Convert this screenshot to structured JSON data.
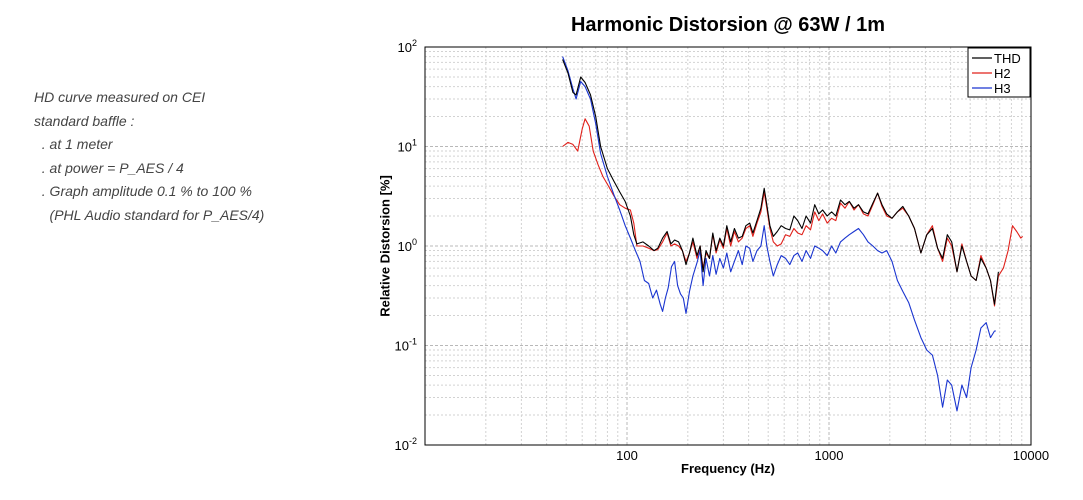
{
  "notes": {
    "lines": [
      "HD curve measured on CEI",
      "standard baffle :",
      "  . at 1 meter",
      "  . at power = P_AES / 4",
      "  . Graph amplitude 0.1 % to 100 %",
      "    (PHL Audio standard for P_AES/4)"
    ]
  },
  "chart_data": {
    "type": "line",
    "title": "Harmonic Distorsion @ 63W / 1m",
    "xlabel": "Frequency (Hz)",
    "ylabel": "Relative Distorsion [%]",
    "xscale": "log",
    "yscale": "log",
    "xlim": [
      10,
      10000
    ],
    "ylim": [
      0.01,
      100
    ],
    "x_tick_labels": [
      {
        "value": 100,
        "label": "100"
      },
      {
        "value": 1000,
        "label": "1000"
      },
      {
        "value": 10000,
        "label": "10000"
      }
    ],
    "y_tick_labels": [
      {
        "value": 100,
        "base": "10",
        "exp": "2"
      },
      {
        "value": 10,
        "base": "10",
        "exp": "1"
      },
      {
        "value": 1,
        "base": "10",
        "exp": "0"
      },
      {
        "value": 0.1,
        "base": "10",
        "exp": "-1"
      },
      {
        "value": 0.01,
        "base": "10",
        "exp": "-2"
      }
    ],
    "grid": true,
    "legend_position": "top-right",
    "series": [
      {
        "name": "THD",
        "color": "#000000",
        "points": [
          [
            48,
            75
          ],
          [
            51,
            55
          ],
          [
            54,
            35
          ],
          [
            56,
            33
          ],
          [
            59,
            50
          ],
          [
            62,
            44
          ],
          [
            66,
            33
          ],
          [
            70,
            20
          ],
          [
            74,
            10
          ],
          [
            80,
            6.0
          ],
          [
            86,
            4.5
          ],
          [
            92,
            3.5
          ],
          [
            98,
            2.8
          ],
          [
            104,
            2.0
          ],
          [
            108,
            1.3
          ],
          [
            112,
            1.05
          ],
          [
            120,
            1.1
          ],
          [
            128,
            1.0
          ],
          [
            136,
            0.9
          ],
          [
            142,
            0.95
          ],
          [
            150,
            1.2
          ],
          [
            158,
            1.4
          ],
          [
            165,
            1.05
          ],
          [
            172,
            1.15
          ],
          [
            180,
            1.1
          ],
          [
            188,
            0.9
          ],
          [
            196,
            0.65
          ],
          [
            204,
            0.85
          ],
          [
            212,
            1.2
          ],
          [
            222,
            0.8
          ],
          [
            230,
            1.0
          ],
          [
            238,
            0.55
          ],
          [
            246,
            0.9
          ],
          [
            256,
            0.75
          ],
          [
            266,
            1.35
          ],
          [
            276,
            0.9
          ],
          [
            288,
            1.2
          ],
          [
            300,
            1.0
          ],
          [
            312,
            1.6
          ],
          [
            326,
            1.1
          ],
          [
            340,
            1.5
          ],
          [
            356,
            1.2
          ],
          [
            372,
            1.25
          ],
          [
            388,
            1.6
          ],
          [
            405,
            1.7
          ],
          [
            420,
            1.35
          ],
          [
            440,
            1.8
          ],
          [
            460,
            2.4
          ],
          [
            478,
            3.8
          ],
          [
            492,
            2.6
          ],
          [
            510,
            1.6
          ],
          [
            530,
            1.25
          ],
          [
            555,
            1.4
          ],
          [
            580,
            1.6
          ],
          [
            610,
            1.5
          ],
          [
            640,
            1.45
          ],
          [
            670,
            2.0
          ],
          [
            700,
            1.8
          ],
          [
            735,
            1.5
          ],
          [
            770,
            2.0
          ],
          [
            810,
            1.7
          ],
          [
            850,
            2.6
          ],
          [
            890,
            2.1
          ],
          [
            930,
            2.3
          ],
          [
            980,
            2.0
          ],
          [
            1030,
            2.2
          ],
          [
            1080,
            2.0
          ],
          [
            1140,
            2.9
          ],
          [
            1200,
            2.6
          ],
          [
            1260,
            2.8
          ],
          [
            1330,
            2.4
          ],
          [
            1400,
            2.6
          ],
          [
            1480,
            2.2
          ],
          [
            1560,
            2.1
          ],
          [
            1650,
            2.7
          ],
          [
            1740,
            3.4
          ],
          [
            1830,
            2.6
          ],
          [
            1930,
            2.1
          ],
          [
            2050,
            1.9
          ],
          [
            2180,
            2.2
          ],
          [
            2320,
            2.5
          ],
          [
            2480,
            2.0
          ],
          [
            2650,
            1.5
          ],
          [
            2850,
            0.85
          ],
          [
            3050,
            1.3
          ],
          [
            3250,
            1.5
          ],
          [
            3450,
            0.95
          ],
          [
            3650,
            0.75
          ],
          [
            3850,
            1.3
          ],
          [
            4050,
            1.1
          ],
          [
            4300,
            0.55
          ],
          [
            4550,
            1.0
          ],
          [
            4800,
            0.7
          ],
          [
            5050,
            0.5
          ],
          [
            5350,
            0.45
          ],
          [
            5650,
            0.75
          ],
          [
            6000,
            0.6
          ],
          [
            6300,
            0.45
          ],
          [
            6600,
            0.26
          ],
          [
            6900,
            0.55
          ]
        ]
      },
      {
        "name": "H2",
        "color": "#e0201a",
        "points": [
          [
            48,
            10
          ],
          [
            51,
            11
          ],
          [
            54,
            10.5
          ],
          [
            57,
            9
          ],
          [
            60,
            15
          ],
          [
            62,
            19
          ],
          [
            65,
            16
          ],
          [
            68,
            9
          ],
          [
            72,
            6.5
          ],
          [
            76,
            5.0
          ],
          [
            81,
            4.0
          ],
          [
            86,
            3.2
          ],
          [
            92,
            2.6
          ],
          [
            98,
            2.4
          ],
          [
            104,
            2.3
          ],
          [
            108,
            1.7
          ],
          [
            112,
            1.0
          ],
          [
            120,
            1.0
          ],
          [
            128,
            0.95
          ],
          [
            136,
            0.9
          ],
          [
            142,
            0.92
          ],
          [
            150,
            1.1
          ],
          [
            158,
            1.35
          ],
          [
            165,
            1.0
          ],
          [
            172,
            1.05
          ],
          [
            180,
            1.0
          ],
          [
            188,
            0.9
          ],
          [
            196,
            0.7
          ],
          [
            204,
            0.85
          ],
          [
            212,
            1.1
          ],
          [
            222,
            0.75
          ],
          [
            230,
            1.0
          ],
          [
            238,
            0.6
          ],
          [
            246,
            0.85
          ],
          [
            256,
            0.75
          ],
          [
            266,
            1.3
          ],
          [
            276,
            0.85
          ],
          [
            288,
            1.15
          ],
          [
            300,
            0.95
          ],
          [
            312,
            1.5
          ],
          [
            326,
            1.0
          ],
          [
            340,
            1.4
          ],
          [
            356,
            1.1
          ],
          [
            372,
            1.2
          ],
          [
            388,
            1.5
          ],
          [
            405,
            1.6
          ],
          [
            420,
            1.25
          ],
          [
            440,
            1.7
          ],
          [
            460,
            2.2
          ],
          [
            478,
            3.5
          ],
          [
            492,
            2.4
          ],
          [
            510,
            1.5
          ],
          [
            530,
            1.1
          ],
          [
            555,
            1.0
          ],
          [
            580,
            1.05
          ],
          [
            610,
            1.3
          ],
          [
            640,
            1.25
          ],
          [
            670,
            1.5
          ],
          [
            700,
            1.35
          ],
          [
            735,
            1.3
          ],
          [
            770,
            1.6
          ],
          [
            810,
            1.45
          ],
          [
            850,
            2.2
          ],
          [
            890,
            1.8
          ],
          [
            930,
            2.1
          ],
          [
            980,
            1.7
          ],
          [
            1030,
            1.9
          ],
          [
            1080,
            1.8
          ],
          [
            1140,
            2.7
          ],
          [
            1200,
            2.4
          ],
          [
            1260,
            2.8
          ],
          [
            1330,
            2.3
          ],
          [
            1400,
            2.6
          ],
          [
            1480,
            2.1
          ],
          [
            1560,
            2.0
          ],
          [
            1650,
            2.6
          ],
          [
            1740,
            3.4
          ],
          [
            1830,
            2.5
          ],
          [
            1930,
            2.0
          ],
          [
            2050,
            1.9
          ],
          [
            2180,
            2.2
          ],
          [
            2320,
            2.4
          ],
          [
            2480,
            2.0
          ],
          [
            2650,
            1.5
          ],
          [
            2850,
            0.85
          ],
          [
            3050,
            1.3
          ],
          [
            3250,
            1.6
          ],
          [
            3450,
            0.95
          ],
          [
            3650,
            0.7
          ],
          [
            3850,
            1.2
          ],
          [
            4050,
            1.0
          ],
          [
            4300,
            0.55
          ],
          [
            4550,
            1.05
          ],
          [
            4800,
            0.7
          ],
          [
            5050,
            0.5
          ],
          [
            5350,
            0.45
          ],
          [
            5650,
            0.8
          ],
          [
            6000,
            0.6
          ],
          [
            6300,
            0.45
          ],
          [
            6600,
            0.25
          ],
          [
            6900,
            0.5
          ],
          [
            7300,
            0.6
          ],
          [
            7700,
            0.9
          ],
          [
            8100,
            1.6
          ],
          [
            8500,
            1.4
          ],
          [
            8900,
            1.2
          ],
          [
            9100,
            1.25
          ]
        ]
      },
      {
        "name": "H3",
        "color": "#1a35d0",
        "points": [
          [
            48,
            80
          ],
          [
            51,
            58
          ],
          [
            54,
            38
          ],
          [
            56,
            30
          ],
          [
            59,
            45
          ],
          [
            62,
            40
          ],
          [
            66,
            30
          ],
          [
            70,
            17
          ],
          [
            74,
            8.5
          ],
          [
            80,
            5.0
          ],
          [
            86,
            3.3
          ],
          [
            92,
            2.3
          ],
          [
            98,
            1.6
          ],
          [
            104,
            1.2
          ],
          [
            110,
            0.9
          ],
          [
            116,
            0.7
          ],
          [
            122,
            0.45
          ],
          [
            128,
            0.42
          ],
          [
            134,
            0.3
          ],
          [
            140,
            0.36
          ],
          [
            146,
            0.26
          ],
          [
            150,
            0.22
          ],
          [
            155,
            0.3
          ],
          [
            160,
            0.38
          ],
          [
            166,
            0.62
          ],
          [
            172,
            0.7
          ],
          [
            178,
            0.4
          ],
          [
            184,
            0.33
          ],
          [
            190,
            0.3
          ],
          [
            196,
            0.21
          ],
          [
            204,
            0.35
          ],
          [
            212,
            0.5
          ],
          [
            222,
            0.68
          ],
          [
            230,
            0.9
          ],
          [
            238,
            0.4
          ],
          [
            246,
            0.75
          ],
          [
            256,
            0.5
          ],
          [
            266,
            0.8
          ],
          [
            276,
            0.52
          ],
          [
            288,
            0.75
          ],
          [
            300,
            0.6
          ],
          [
            312,
            0.85
          ],
          [
            326,
            0.55
          ],
          [
            340,
            0.7
          ],
          [
            356,
            0.9
          ],
          [
            372,
            0.65
          ],
          [
            388,
            1.0
          ],
          [
            405,
            0.95
          ],
          [
            420,
            0.7
          ],
          [
            440,
            0.9
          ],
          [
            460,
            1.0
          ],
          [
            478,
            1.6
          ],
          [
            492,
            1.0
          ],
          [
            510,
            0.7
          ],
          [
            530,
            0.5
          ],
          [
            555,
            0.65
          ],
          [
            580,
            0.8
          ],
          [
            610,
            0.75
          ],
          [
            640,
            0.65
          ],
          [
            670,
            0.8
          ],
          [
            700,
            0.85
          ],
          [
            735,
            0.7
          ],
          [
            770,
            0.9
          ],
          [
            810,
            0.75
          ],
          [
            850,
            1.0
          ],
          [
            890,
            0.95
          ],
          [
            930,
            0.9
          ],
          [
            980,
            0.8
          ],
          [
            1030,
            1.0
          ],
          [
            1080,
            0.85
          ],
          [
            1140,
            1.1
          ],
          [
            1200,
            1.2
          ],
          [
            1260,
            1.3
          ],
          [
            1330,
            1.4
          ],
          [
            1400,
            1.5
          ],
          [
            1480,
            1.3
          ],
          [
            1560,
            1.1
          ],
          [
            1650,
            1.0
          ],
          [
            1740,
            0.9
          ],
          [
            1830,
            0.85
          ],
          [
            1930,
            0.9
          ],
          [
            2050,
            0.7
          ],
          [
            2180,
            0.45
          ],
          [
            2320,
            0.35
          ],
          [
            2480,
            0.27
          ],
          [
            2650,
            0.18
          ],
          [
            2850,
            0.12
          ],
          [
            3050,
            0.09
          ],
          [
            3250,
            0.08
          ],
          [
            3450,
            0.05
          ],
          [
            3650,
            0.024
          ],
          [
            3850,
            0.045
          ],
          [
            4050,
            0.04
          ],
          [
            4300,
            0.022
          ],
          [
            4550,
            0.04
          ],
          [
            4800,
            0.03
          ],
          [
            5050,
            0.06
          ],
          [
            5350,
            0.09
          ],
          [
            5650,
            0.15
          ],
          [
            6000,
            0.17
          ],
          [
            6300,
            0.12
          ],
          [
            6600,
            0.14
          ],
          [
            6700,
            0.14
          ]
        ]
      }
    ]
  }
}
